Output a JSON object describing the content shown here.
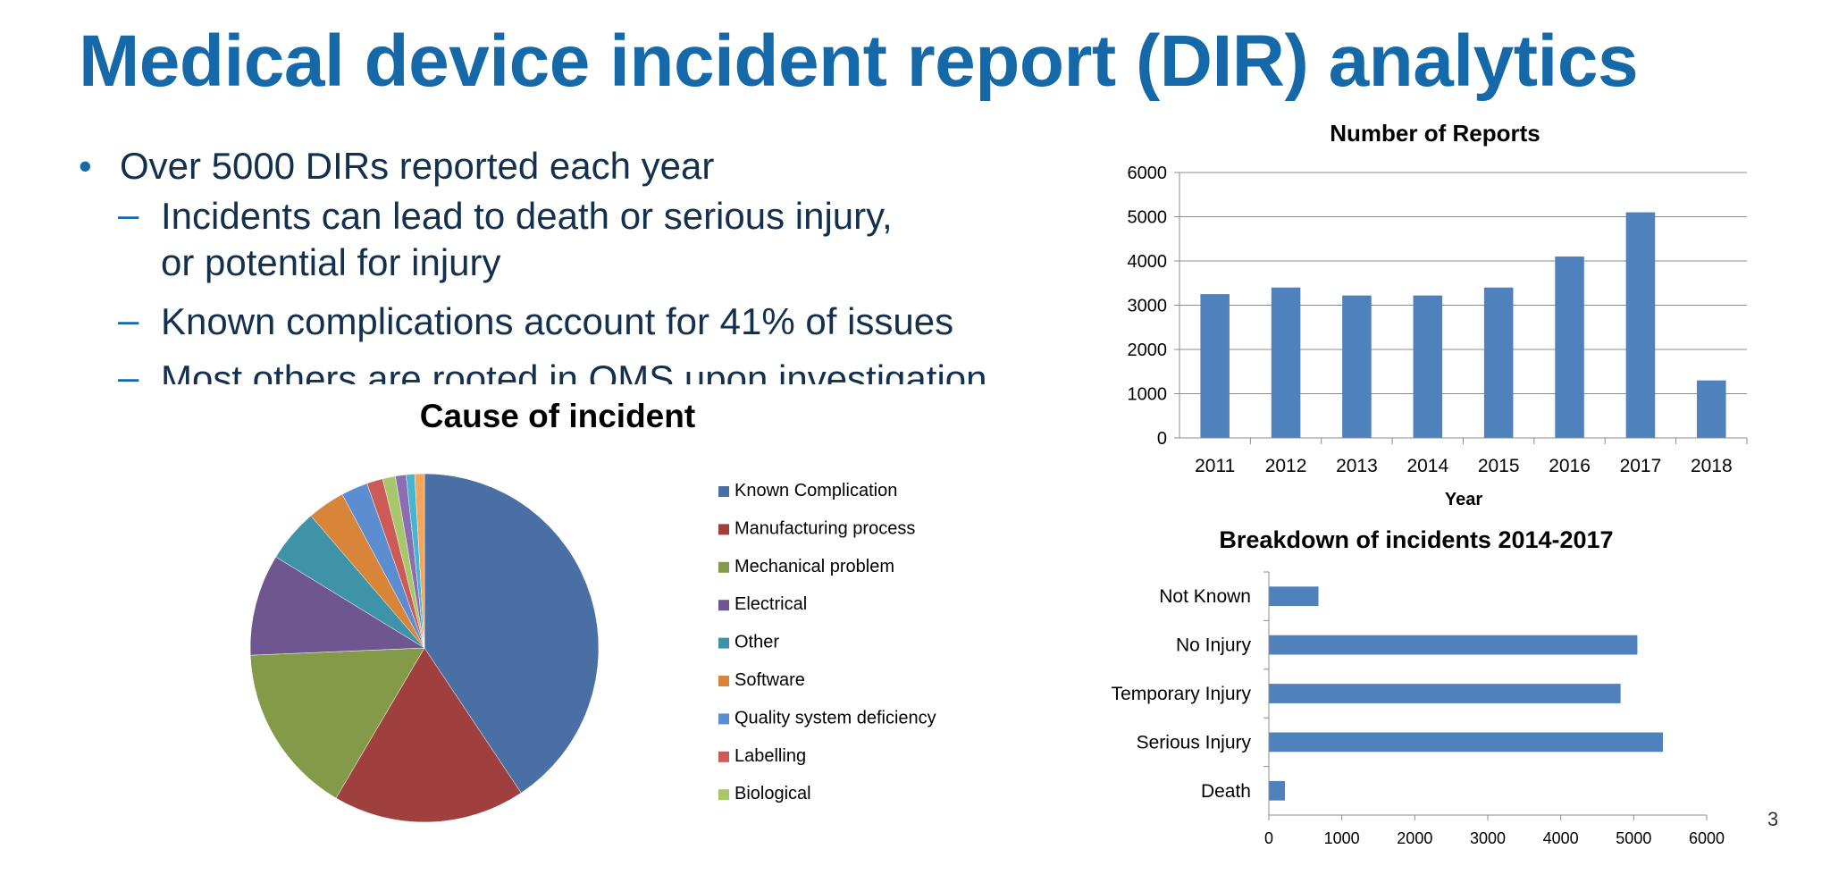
{
  "slide": {
    "title": "Medical device incident report (DIR) analytics",
    "bullet_main": "Over 5000 DIRs reported each year",
    "sub_bullets": [
      "Incidents can lead to death or serious injury, or potential for injury",
      "Known complications account for 41% of issues",
      "Most others are rooted in QMS upon investigation"
    ],
    "page_number": "3"
  },
  "colors": {
    "title": "#1569a8",
    "bar": "#4f81bd"
  },
  "chart_data": [
    {
      "type": "bar",
      "title": "Number of Reports",
      "xlabel": "Year",
      "ylabel": "",
      "categories": [
        "2011",
        "2012",
        "2013",
        "2014",
        "2015",
        "2016",
        "2017",
        "2018"
      ],
      "values": [
        3250,
        3400,
        3220,
        3220,
        3400,
        4100,
        5100,
        1300
      ],
      "ylim": [
        0,
        6000
      ],
      "yticks": [
        "0",
        "1000",
        "2000",
        "3000",
        "4000",
        "5000",
        "6000"
      ],
      "grid": true
    },
    {
      "type": "bar",
      "orientation": "horizontal",
      "title": "Breakdown of incidents 2014-2017",
      "xlabel": "",
      "ylabel": "",
      "categories": [
        "Not Known",
        "No Injury",
        "Temporary Injury",
        "Serious Injury",
        "Death"
      ],
      "values": [
        680,
        5050,
        4820,
        5400,
        220
      ],
      "xlim": [
        0,
        6000
      ],
      "xticks": [
        "0",
        "1000",
        "2000",
        "3000",
        "4000",
        "5000",
        "6000"
      ],
      "grid": false
    },
    {
      "type": "pie",
      "title": "Cause of incident",
      "legend_position": "right",
      "slices": [
        {
          "label": "Known Complication",
          "value": 41,
          "color": "#4a6fa5"
        },
        {
          "label": "Manufacturing process",
          "value": 18,
          "color": "#a0403e"
        },
        {
          "label": "Mechanical problem",
          "value": 16,
          "color": "#839b48"
        },
        {
          "label": "Electrical",
          "value": 9.5,
          "color": "#6e5791"
        },
        {
          "label": "Other",
          "value": 5,
          "color": "#3f93a8"
        },
        {
          "label": "Software",
          "value": 3.5,
          "color": "#d88539"
        },
        {
          "label": "Quality system deficiency",
          "value": 2.5,
          "color": "#5c8dd0"
        },
        {
          "label": "Labelling",
          "value": 1.5,
          "color": "#cc5b58"
        },
        {
          "label": "Biological",
          "value": 1.2,
          "color": "#a8c76b"
        },
        {
          "label": "",
          "value": 1.0,
          "color": "#8a6db3"
        },
        {
          "label": "",
          "value": 0.8,
          "color": "#49b4cf"
        },
        {
          "label": "",
          "value": 0.9,
          "color": "#f5a45a"
        }
      ]
    }
  ]
}
